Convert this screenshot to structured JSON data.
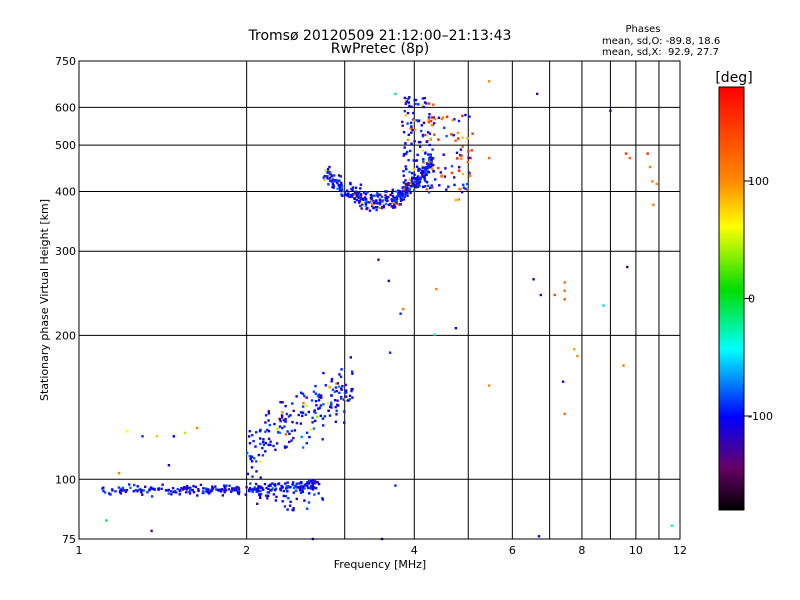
{
  "chart_data": {
    "type": "scatter",
    "title": "Tromsø 20120509 21:12:00–21:13:43",
    "subtitle": "RwPretec (8p)",
    "xlabel": "Frequency [MHz]",
    "ylabel": "Stationary phase Virtual Height [km]",
    "x_scale": "log",
    "y_scale": "log",
    "xlim": [
      1,
      12
    ],
    "ylim": [
      75,
      750
    ],
    "x_ticks": [
      1,
      2,
      4,
      6,
      8,
      10,
      12
    ],
    "x_tick_labels": [
      "1",
      "2",
      "4",
      "6",
      "8",
      "10",
      "12"
    ],
    "x_minor_grid": [
      3,
      5,
      7,
      9,
      11
    ],
    "y_ticks": [
      75,
      100,
      200,
      300,
      400,
      500,
      600,
      750
    ],
    "y_tick_labels": [
      "75",
      "100",
      "200",
      "300",
      "400",
      "500",
      "600",
      "750"
    ],
    "grid": true,
    "phase_info": {
      "heading": "Phases",
      "line_o": "mean, sd,O: -89.8, 18.6",
      "line_x": "mean, sd,X:  92.9, 27.7"
    },
    "colorbar": {
      "label": "[deg]",
      "range": [
        -180,
        180
      ],
      "ticks": [
        100,
        0,
        -100
      ],
      "tick_labels": [
        "100",
        "0",
        "-100"
      ]
    },
    "sporadic_points": [
      {
        "x": 1.12,
        "y": 82,
        "phase": -10
      },
      {
        "x": 1.22,
        "y": 126,
        "phase": 60
      },
      {
        "x": 1.3,
        "y": 123,
        "phase": -90
      },
      {
        "x": 1.38,
        "y": 123,
        "phase": 80
      },
      {
        "x": 1.48,
        "y": 123,
        "phase": -100
      },
      {
        "x": 1.63,
        "y": 128,
        "phase": 100
      },
      {
        "x": 1.55,
        "y": 125,
        "phase": 40
      },
      {
        "x": 1.35,
        "y": 78,
        "phase": -130
      },
      {
        "x": 1.45,
        "y": 107,
        "phase": -100
      },
      {
        "x": 1.18,
        "y": 103,
        "phase": 110
      },
      {
        "x": 2.63,
        "y": 75,
        "phase": -110
      },
      {
        "x": 3.7,
        "y": 97,
        "phase": -90
      },
      {
        "x": 3.5,
        "y": 75,
        "phase": -100
      },
      {
        "x": 3.7,
        "y": 640,
        "phase": -20
      },
      {
        "x": 3.55,
        "y": 400,
        "phase": -100
      },
      {
        "x": 3.62,
        "y": 184,
        "phase": -90
      },
      {
        "x": 3.45,
        "y": 288,
        "phase": -130
      },
      {
        "x": 3.6,
        "y": 260,
        "phase": -110
      },
      {
        "x": 3.78,
        "y": 222,
        "phase": -90
      },
      {
        "x": 3.82,
        "y": 227,
        "phase": 110
      },
      {
        "x": 4.38,
        "y": 250,
        "phase": 100
      },
      {
        "x": 4.35,
        "y": 201,
        "phase": -40
      },
      {
        "x": 4.75,
        "y": 207,
        "phase": -100
      },
      {
        "x": 5.45,
        "y": 157,
        "phase": 100
      },
      {
        "x": 5.45,
        "y": 470,
        "phase": 120
      },
      {
        "x": 5.45,
        "y": 680,
        "phase": 100
      },
      {
        "x": 6.65,
        "y": 640,
        "phase": -130
      },
      {
        "x": 6.55,
        "y": 262,
        "phase": -110
      },
      {
        "x": 6.75,
        "y": 243,
        "phase": -120
      },
      {
        "x": 7.15,
        "y": 243,
        "phase": 140
      },
      {
        "x": 7.45,
        "y": 258,
        "phase": 120
      },
      {
        "x": 7.45,
        "y": 248,
        "phase": 120
      },
      {
        "x": 7.45,
        "y": 238,
        "phase": 130
      },
      {
        "x": 7.75,
        "y": 187,
        "phase": 90
      },
      {
        "x": 7.85,
        "y": 181,
        "phase": 100
      },
      {
        "x": 7.4,
        "y": 160,
        "phase": -110
      },
      {
        "x": 7.45,
        "y": 137,
        "phase": 120
      },
      {
        "x": 8.75,
        "y": 231,
        "phase": -50
      },
      {
        "x": 9.0,
        "y": 590,
        "phase": -130
      },
      {
        "x": 9.6,
        "y": 480,
        "phase": 150
      },
      {
        "x": 9.75,
        "y": 470,
        "phase": 120
      },
      {
        "x": 9.65,
        "y": 278,
        "phase": -150
      },
      {
        "x": 9.5,
        "y": 173,
        "phase": 110
      },
      {
        "x": 10.5,
        "y": 480,
        "phase": 160
      },
      {
        "x": 10.6,
        "y": 450,
        "phase": 110
      },
      {
        "x": 10.7,
        "y": 420,
        "phase": 100
      },
      {
        "x": 10.9,
        "y": 415,
        "phase": 100
      },
      {
        "x": 10.75,
        "y": 375,
        "phase": 110
      },
      {
        "x": 11.6,
        "y": 80,
        "phase": -30
      },
      {
        "x": 6.7,
        "y": 76,
        "phase": -100
      }
    ]
  }
}
